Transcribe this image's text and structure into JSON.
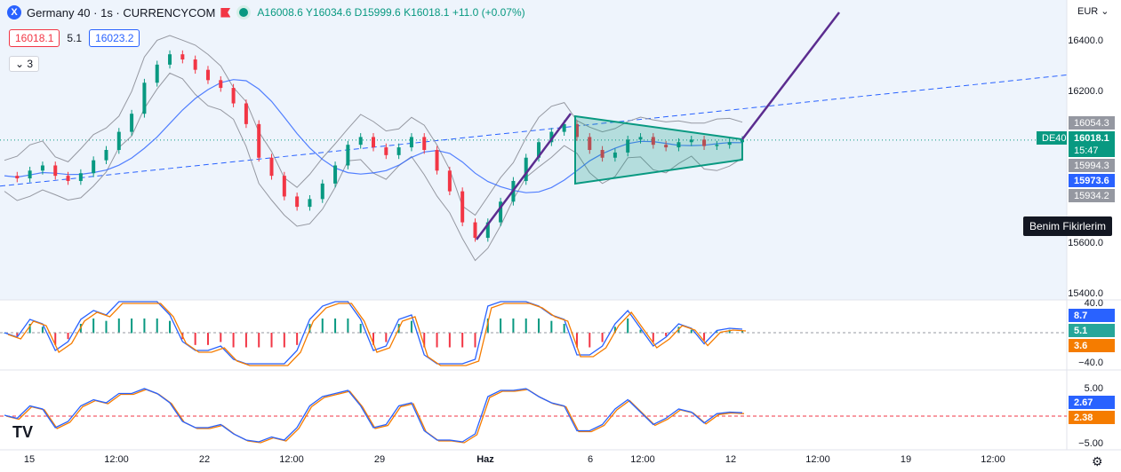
{
  "header": {
    "symbol_badge": "X",
    "title": "Germany 40 · 1s · CURRENCYCOM",
    "ohlc": {
      "open_label": "A",
      "open": "16008.6",
      "high_label": "Y",
      "high": "16034.6",
      "low_label": "D",
      "low": "15999.6",
      "close_label": "K",
      "close": "16018.1",
      "change": "+11.0 (+0.07%)"
    },
    "bid": "16018.1",
    "spread": "5.1",
    "ask": "16023.2",
    "indicators_count": "3"
  },
  "price_axis": {
    "currency": "EUR",
    "ticks": [
      "16400.0",
      "16200.0",
      "15600.0",
      "15400.0"
    ],
    "tags": {
      "upper_band": "16054.3",
      "symbol": "DE40",
      "last_price": "16018.1",
      "countdown": "15:47",
      "mid": "15994.3",
      "ma": "15973.6",
      "lower_band": "15934.2"
    }
  },
  "macd_axis": {
    "top": "40.0",
    "bottom": "−40.0",
    "tags": {
      "macd": "8.7",
      "hist": "5.1",
      "signal": "3.6"
    }
  },
  "osc_axis": {
    "top": "5.00",
    "bottom": "−5.00",
    "tags": {
      "a": "2.67",
      "b": "2.38"
    }
  },
  "time_axis": {
    "labels": [
      "15",
      "12:00",
      "22",
      "12:00",
      "29",
      "Haz",
      "6",
      "12:00",
      "12",
      "12:00",
      "19",
      "12:00"
    ]
  },
  "tooltip": "Benim Fikirlerim",
  "colors": {
    "up": "#089981",
    "down": "#f23645",
    "blue": "#2962ff",
    "orange": "#f57c00",
    "purple": "#5b2c8f",
    "pane_bg": "#eef4fc"
  },
  "icons": {
    "logo": "tradingview-logo",
    "settings": "gear-icon",
    "flag": "flag-icon",
    "market": "live-dot-icon"
  },
  "chart_data": {
    "type": "line",
    "series": [
      {
        "values": [
          15880,
          15870,
          15900,
          15920,
          15880,
          15860,
          15890,
          15940,
          15980,
          16050,
          16120,
          16240,
          16310,
          16350,
          16330,
          16290,
          16250,
          16220,
          16160,
          16080,
          15950,
          15880,
          15800,
          15760,
          15790,
          15850,
          15920,
          16000,
          16030,
          15990,
          15960,
          15990,
          16030,
          15980,
          15900,
          15820,
          15700,
          15640,
          15700,
          15780,
          15860,
          15950,
          16010,
          16050,
          16080,
          16030,
          15980,
          15950,
          15970,
          16020,
          16030,
          16000,
          15990,
          16010,
          16020,
          15995,
          16000,
          16010,
          16018
        ]
      }
    ],
    "ylim": [
      15400,
      16560
    ]
  }
}
